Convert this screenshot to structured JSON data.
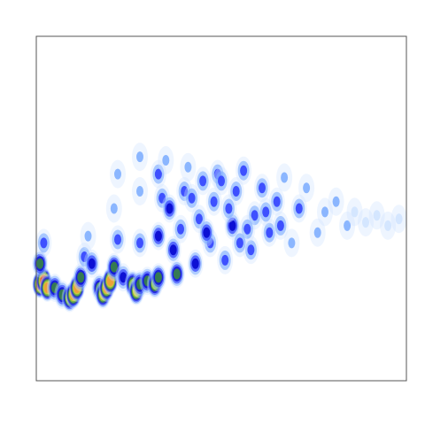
{
  "chart_data": {
    "type": "heatmap",
    "title": "",
    "xlabel": "",
    "ylabel": "",
    "xlim": [
      0,
      1
    ],
    "ylim": [
      0,
      1
    ],
    "grid": false,
    "legend": "none",
    "colormap": [
      "#ffffff",
      "#cfe3ff",
      "#79aaff",
      "#2b3bff",
      "#0000cc",
      "#3a8a3a",
      "#8fcf2f",
      "#e0d23a",
      "#f29a3a",
      "#e6412a"
    ],
    "series": [
      {
        "values": [
          [
            0.01,
            0.28,
            0.95
          ],
          [
            0.02,
            0.29,
            0.98
          ],
          [
            0.03,
            0.27,
            0.85
          ],
          [
            0.01,
            0.34,
            0.55
          ],
          [
            0.02,
            0.4,
            0.35
          ],
          [
            0.05,
            0.27,
            0.55
          ],
          [
            0.07,
            0.25,
            0.6
          ],
          [
            0.09,
            0.24,
            0.8
          ],
          [
            0.1,
            0.25,
            0.88
          ],
          [
            0.11,
            0.27,
            0.85
          ],
          [
            0.12,
            0.3,
            0.55
          ],
          [
            0.13,
            0.36,
            0.35
          ],
          [
            0.14,
            0.42,
            0.25
          ],
          [
            0.15,
            0.34,
            0.4
          ],
          [
            0.17,
            0.27,
            0.55
          ],
          [
            0.18,
            0.25,
            0.75
          ],
          [
            0.19,
            0.27,
            0.92
          ],
          [
            0.2,
            0.29,
            0.88
          ],
          [
            0.21,
            0.33,
            0.6
          ],
          [
            0.22,
            0.41,
            0.38
          ],
          [
            0.21,
            0.5,
            0.25
          ],
          [
            0.22,
            0.6,
            0.2
          ],
          [
            0.235,
            0.3,
            0.45
          ],
          [
            0.26,
            0.28,
            0.65
          ],
          [
            0.27,
            0.26,
            0.8
          ],
          [
            0.28,
            0.28,
            0.55
          ],
          [
            0.28,
            0.4,
            0.35
          ],
          [
            0.28,
            0.55,
            0.25
          ],
          [
            0.28,
            0.65,
            0.18
          ],
          [
            0.3,
            0.29,
            0.5
          ],
          [
            0.32,
            0.28,
            0.7
          ],
          [
            0.33,
            0.3,
            0.55
          ],
          [
            0.33,
            0.42,
            0.4
          ],
          [
            0.34,
            0.53,
            0.35
          ],
          [
            0.33,
            0.6,
            0.28
          ],
          [
            0.35,
            0.64,
            0.22
          ],
          [
            0.37,
            0.38,
            0.42
          ],
          [
            0.38,
            0.31,
            0.5
          ],
          [
            0.39,
            0.44,
            0.38
          ],
          [
            0.4,
            0.55,
            0.32
          ],
          [
            0.41,
            0.62,
            0.25
          ],
          [
            0.43,
            0.34,
            0.4
          ],
          [
            0.44,
            0.47,
            0.38
          ],
          [
            0.45,
            0.58,
            0.33
          ],
          [
            0.47,
            0.4,
            0.38
          ],
          [
            0.48,
            0.52,
            0.35
          ],
          [
            0.49,
            0.6,
            0.3
          ],
          [
            0.51,
            0.35,
            0.35
          ],
          [
            0.53,
            0.45,
            0.4
          ],
          [
            0.54,
            0.55,
            0.35
          ],
          [
            0.56,
            0.61,
            0.28
          ],
          [
            0.58,
            0.38,
            0.32
          ],
          [
            0.59,
            0.48,
            0.38
          ],
          [
            0.61,
            0.56,
            0.3
          ],
          [
            0.63,
            0.43,
            0.33
          ],
          [
            0.65,
            0.52,
            0.32
          ],
          [
            0.67,
            0.59,
            0.25
          ],
          [
            0.69,
            0.4,
            0.25
          ],
          [
            0.71,
            0.5,
            0.3
          ],
          [
            0.73,
            0.56,
            0.22
          ],
          [
            0.76,
            0.43,
            0.22
          ],
          [
            0.78,
            0.49,
            0.25
          ],
          [
            0.81,
            0.52,
            0.18
          ],
          [
            0.84,
            0.45,
            0.18
          ],
          [
            0.86,
            0.49,
            0.15
          ],
          [
            0.89,
            0.46,
            0.12
          ],
          [
            0.92,
            0.48,
            0.1
          ],
          [
            0.95,
            0.45,
            0.08
          ],
          [
            0.98,
            0.47,
            0.1
          ],
          [
            0.46,
            0.43,
            0.4
          ],
          [
            0.52,
            0.5,
            0.38
          ],
          [
            0.57,
            0.44,
            0.33
          ],
          [
            0.62,
            0.49,
            0.33
          ],
          [
            0.66,
            0.45,
            0.28
          ],
          [
            0.36,
            0.5,
            0.42
          ],
          [
            0.42,
            0.53,
            0.38
          ],
          [
            0.5,
            0.58,
            0.3
          ],
          [
            0.55,
            0.4,
            0.35
          ]
        ]
      }
    ]
  }
}
